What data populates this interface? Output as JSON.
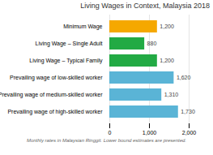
{
  "chart_data": {
    "type": "bar",
    "orientation": "horizontal",
    "title": "Living Wages in Context, Malaysia 2018",
    "categories": [
      "Minimum Wage",
      "Living Wage – Single Adult",
      "Living Wage – Typical Family",
      "Prevailing wage of low-skilled worker",
      "Prevailing wage of medium-skilled worker",
      "Prevailing wage of high-skilled worker"
    ],
    "values": [
      1200,
      880,
      1200,
      1620,
      1310,
      1730
    ],
    "value_labels": [
      "1,200",
      "880",
      "1,200",
      "1,620",
      "1,310",
      "1,730"
    ],
    "colors": [
      "#f5a800",
      "#22aa44",
      "#22aa44",
      "#5ab4d6",
      "#5ab4d6",
      "#5ab4d6"
    ],
    "xlim": [
      0,
      2000
    ],
    "xticks": [
      0,
      {
        "value": 1000,
        "label": "1,000"
      },
      {
        "value": 2000,
        "label": "2,000"
      }
    ],
    "grid": true,
    "data_labels": true,
    "caption": "Monthly rates in Malaysian Ringgit. Lower bound estimates are presented."
  }
}
